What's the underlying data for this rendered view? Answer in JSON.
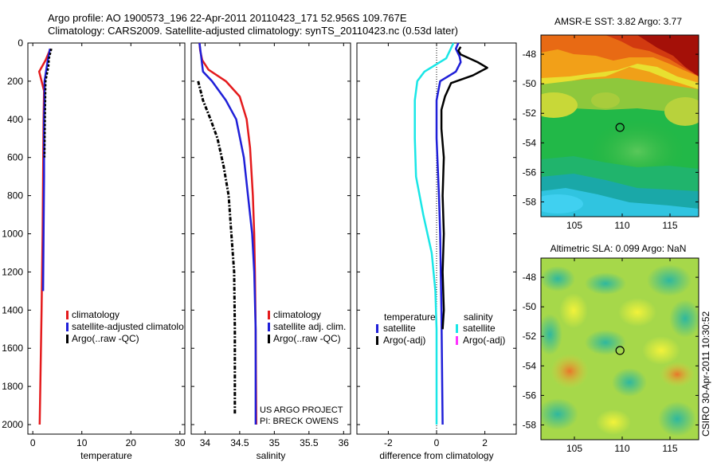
{
  "title_line1": "Argo profile: AO 1900573_196 22-Apr-2011 20110423_171 52.956S 109.767E",
  "title_line2": "Climatology: CARS2009. Satellite-adjusted climatology: synTS_20110423.nc (0.53d later)",
  "side_label": "CSIRO 30-Apr-2011 10:30:52",
  "colors": {
    "red": "#e41a1c",
    "blue": "#1f1fd8",
    "black": "#000000",
    "cyan": "#19e6e6",
    "magenta": "#ff33ff"
  },
  "chart_data": [
    {
      "type": "line",
      "xlabel": "temperature",
      "xlim": [
        -1,
        31
      ],
      "ylim": [
        2050,
        0
      ],
      "xticks": [
        "0",
        "10",
        "20",
        "30"
      ],
      "xtick_values": [
        0,
        10,
        20,
        30
      ],
      "yticks": [
        "0",
        "200",
        "400",
        "600",
        "800",
        "1000",
        "1200",
        "1400",
        "1600",
        "1800",
        "2000"
      ],
      "ytick_values": [
        0,
        200,
        400,
        600,
        800,
        1000,
        1200,
        1400,
        1600,
        1800,
        2000
      ],
      "legend": {
        "placement": "bottom-center",
        "entries": [
          {
            "label": "climatology",
            "color": "red"
          },
          {
            "label": "satellite-adjusted climatolo",
            "color": "blue"
          },
          {
            "label": "Argo(..raw -QC)",
            "color": "black"
          }
        ]
      },
      "series": [
        {
          "color": "red",
          "width": 2.5,
          "points": [
            [
              3.6,
              30
            ],
            [
              2.6,
              90
            ],
            [
              1.3,
              150
            ],
            [
              1.6,
              180
            ],
            [
              2.3,
              250
            ],
            [
              2.2,
              400
            ],
            [
              2.1,
              700
            ],
            [
              2.0,
              1000
            ],
            [
              1.8,
              1400
            ],
            [
              1.6,
              1700
            ],
            [
              1.4,
              2000
            ]
          ]
        },
        {
          "color": "blue",
          "width": 2.5,
          "points": [
            [
              3.5,
              30
            ],
            [
              3.0,
              100
            ],
            [
              2.4,
              200
            ],
            [
              2.4,
              300
            ],
            [
              2.3,
              400
            ],
            [
              2.3,
              700
            ],
            [
              2.2,
              1000
            ],
            [
              2.1,
              1300
            ]
          ]
        },
        {
          "color": "black",
          "width": 2.5,
          "dash": "3 2",
          "points": [
            [
              3.8,
              30
            ],
            [
              3.3,
              80
            ],
            [
              3.2,
              120
            ],
            [
              2.6,
              200
            ],
            [
              2.5,
              400
            ],
            [
              2.4,
              600
            ]
          ]
        }
      ]
    },
    {
      "type": "line",
      "xlabel": "salinity",
      "xlim": [
        33.8,
        36.1
      ],
      "ylim": [
        2050,
        0
      ],
      "xticks": [
        "34",
        "34.5",
        "35",
        "35.5",
        "36"
      ],
      "xtick_values": [
        34,
        34.5,
        35,
        35.5,
        36
      ],
      "legend": {
        "placement": "bottom-center",
        "entries": [
          {
            "label": "climatology",
            "color": "red"
          },
          {
            "label": "satellite adj. clim.",
            "color": "blue"
          },
          {
            "label": "Argo(..raw -QC)",
            "color": "black"
          }
        ]
      },
      "annotations": [
        "US ARGO PROJECT",
        "PI: BRECK OWENS"
      ],
      "series": [
        {
          "color": "red",
          "width": 2.5,
          "points": [
            [
              33.92,
              0
            ],
            [
              33.93,
              40
            ],
            [
              33.96,
              90
            ],
            [
              34.05,
              140
            ],
            [
              34.3,
              200
            ],
            [
              34.5,
              280
            ],
            [
              34.6,
              400
            ],
            [
              34.65,
              550
            ],
            [
              34.69,
              800
            ],
            [
              34.71,
              1000
            ],
            [
              34.72,
              1200
            ],
            [
              34.73,
              1500
            ],
            [
              34.74,
              2000
            ]
          ]
        },
        {
          "color": "blue",
          "width": 2.5,
          "points": [
            [
              33.92,
              0
            ],
            [
              33.94,
              60
            ],
            [
              33.97,
              150
            ],
            [
              34.1,
              200
            ],
            [
              34.3,
              300
            ],
            [
              34.45,
              400
            ],
            [
              34.56,
              600
            ],
            [
              34.62,
              800
            ],
            [
              34.68,
              1000
            ],
            [
              34.71,
              1200
            ],
            [
              34.73,
              1500
            ],
            [
              34.73,
              2000
            ]
          ]
        },
        {
          "color": "black",
          "width": 3,
          "dash": "5 2 2 2",
          "points": [
            [
              33.9,
              200
            ],
            [
              33.97,
              300
            ],
            [
              34.08,
              400
            ],
            [
              34.18,
              500
            ],
            [
              34.27,
              650
            ],
            [
              34.34,
              800
            ],
            [
              34.38,
              1000
            ],
            [
              34.42,
              1200
            ],
            [
              34.43,
              1500
            ],
            [
              34.43,
              1800
            ],
            [
              34.43,
              1950
            ]
          ]
        }
      ]
    },
    {
      "type": "line",
      "xlabel": "difference from climatology",
      "xlim": [
        -3.3,
        3.3
      ],
      "ylim": [
        2050,
        0
      ],
      "xticks": [
        "-2",
        "0",
        "2"
      ],
      "xtick_values": [
        -2,
        0,
        2
      ],
      "legend": {
        "placement": "bottom-center",
        "group_titles": [
          "temperature",
          "salinity"
        ],
        "entries": [
          {
            "label": "satellite",
            "color": "blue",
            "column": 0
          },
          {
            "label": "Argo(-adj)",
            "color": "black",
            "column": 0
          },
          {
            "label": "satellite",
            "color": "cyan",
            "column": 1
          },
          {
            "label": "Argo(-adj)",
            "color": "magenta",
            "column": 1
          }
        ]
      },
      "series": [
        {
          "color": "cyan",
          "width": 2.5,
          "points": [
            [
              0.7,
              0
            ],
            [
              0.4,
              80
            ],
            [
              -0.5,
              150
            ],
            [
              -0.8,
              200
            ],
            [
              -0.9,
              300
            ],
            [
              -0.9,
              500
            ],
            [
              -0.85,
              700
            ],
            [
              -0.55,
              900
            ],
            [
              -0.2,
              1100
            ],
            [
              -0.05,
              1300
            ],
            [
              0,
              1500
            ],
            [
              0,
              1800
            ],
            [
              0,
              2000
            ]
          ]
        },
        {
          "color": "blue",
          "width": 2.5,
          "points": [
            [
              0.9,
              0
            ],
            [
              0.8,
              30
            ],
            [
              0.95,
              70
            ],
            [
              1.0,
              100
            ],
            [
              0.8,
              150
            ],
            [
              0.15,
              200
            ],
            [
              0,
              300
            ],
            [
              0,
              500
            ],
            [
              0.1,
              800
            ],
            [
              0.15,
              1000
            ],
            [
              0.2,
              1400
            ],
            [
              0.25,
              2000
            ]
          ]
        },
        {
          "color": "black",
          "width": 2.5,
          "dash": "1 0",
          "points": [
            [
              1.0,
              20
            ],
            [
              0.9,
              40
            ],
            [
              1.0,
              60
            ],
            [
              1.7,
              100
            ],
            [
              2.1,
              130
            ],
            [
              1.5,
              170
            ],
            [
              0.6,
              210
            ],
            [
              0.35,
              280
            ],
            [
              0.2,
              350
            ],
            [
              0.2,
              450
            ],
            [
              0.3,
              600
            ],
            [
              0.25,
              800
            ],
            [
              0.3,
              1000
            ],
            [
              0.25,
              1200
            ],
            [
              0.3,
              1400
            ],
            [
              0.25,
              1500
            ]
          ]
        }
      ]
    }
  ],
  "maps": [
    {
      "title": "AMSR-E SST: 3.82 Argo: 3.77",
      "xticks": [
        "105",
        "110",
        "115"
      ],
      "xtick_values": [
        105,
        110,
        115
      ],
      "yticks": [
        "-48",
        "-50",
        "-52",
        "-54",
        "-56",
        "-58"
      ],
      "ytick_values": [
        -48,
        -50,
        -52,
        -54,
        -56,
        -58
      ],
      "xlim": [
        101.5,
        118
      ],
      "ylim": [
        -59,
        -46.7
      ],
      "marker": {
        "lon": 109.767,
        "lat": -52.956
      }
    },
    {
      "title": "Altimetric SLA: 0.099 Argo: NaN",
      "xticks": [
        "105",
        "110",
        "115"
      ],
      "xtick_values": [
        105,
        110,
        115
      ],
      "yticks": [
        "-48",
        "-50",
        "-52",
        "-54",
        "-56",
        "-58"
      ],
      "ytick_values": [
        -48,
        -50,
        -52,
        -54,
        -56,
        -58
      ],
      "xlim": [
        101.5,
        118
      ],
      "ylim": [
        -59,
        -46.7
      ],
      "marker": {
        "lon": 109.767,
        "lat": -52.956
      }
    }
  ]
}
